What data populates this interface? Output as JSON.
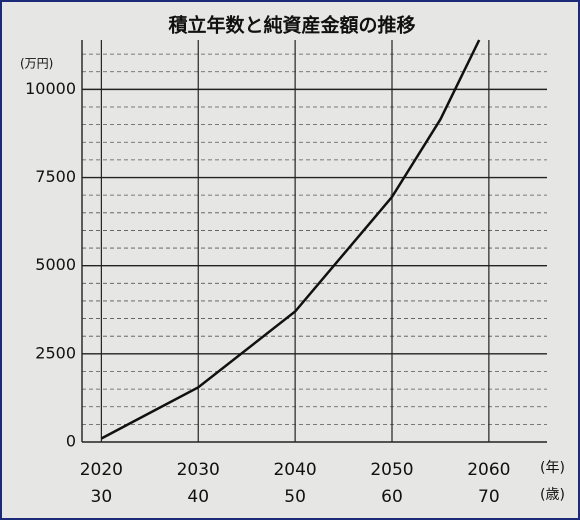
{
  "chart_data": {
    "type": "line",
    "title": "積立年数と純資産金額の推移",
    "y_unit": "(万円)",
    "x_unit": "(年)",
    "age_unit": "(歳)",
    "x": [
      2020,
      2030,
      2040,
      2050,
      2055,
      2059
    ],
    "series": [
      {
        "name": "純資産金額",
        "color": "#111111",
        "values": [
          100,
          1550,
          3700,
          6950,
          9150,
          11400
        ]
      }
    ],
    "xlim": [
      2018,
      2066
    ],
    "xticks": [
      2020,
      2030,
      2040,
      2050,
      2060
    ],
    "age_labels": [
      30,
      40,
      50,
      60,
      70
    ],
    "ylim": [
      0,
      11400
    ],
    "yticks": [
      0,
      2500,
      5000,
      7500,
      10000
    ],
    "minor_yticks": [
      500,
      1000,
      1500,
      2000,
      3000,
      3500,
      4000,
      4500,
      5500,
      6000,
      6500,
      7000,
      8000,
      8500,
      9000,
      9500,
      10500,
      11000
    ],
    "grid": true
  }
}
